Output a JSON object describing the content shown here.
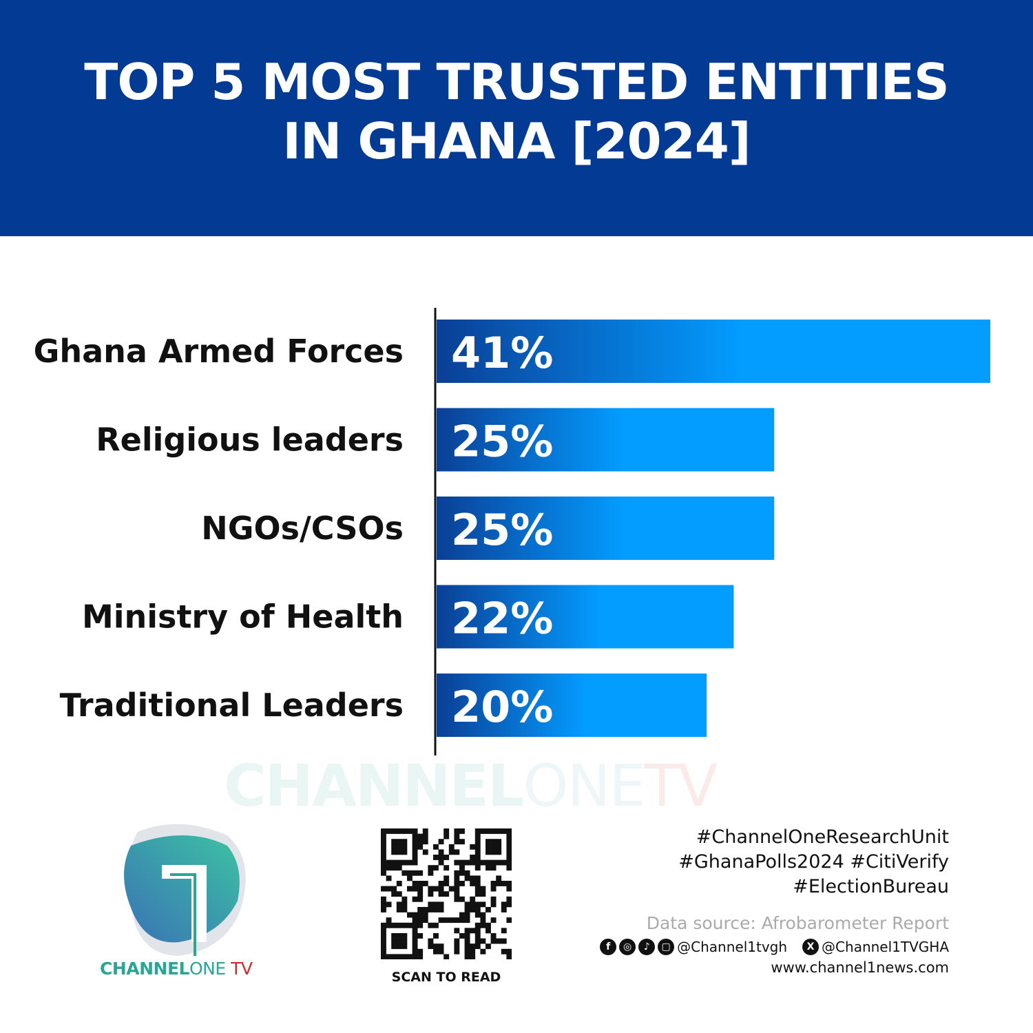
{
  "header": {
    "title_line1": "TOP 5 MOST TRUSTED ENTITIES",
    "title_line2": "IN GHANA [2024]"
  },
  "chart_data": {
    "type": "bar",
    "orientation": "horizontal",
    "title": "TOP 5 MOST TRUSTED ENTITIES IN GHANA [2024]",
    "categories": [
      "Ghana Armed Forces",
      "Religious leaders",
      "NGOs/CSOs",
      "Ministry of Health",
      "Traditional Leaders"
    ],
    "values": [
      41,
      25,
      25,
      22,
      20
    ],
    "data_labels": [
      "41%",
      "25%",
      "25%",
      "22%",
      "20%"
    ],
    "unit": "%",
    "grid": false,
    "legend": "none",
    "colors": {
      "bar_start": "#0b3f96",
      "bar_end": "#039cff"
    }
  },
  "watermark": {
    "part1": "CHANNEL",
    "part2": "ONE",
    "part3": "TV"
  },
  "logo": {
    "part1": "CHANNEL",
    "part2": "ONE",
    "part3": " TV"
  },
  "qr": {
    "label": "SCAN TO READ"
  },
  "footer": {
    "tags": [
      "#ChannelOneResearchUnit",
      "#GhanaPolls2024 #CitiVerify",
      "#ElectionBureau"
    ],
    "source": "Data source: Afrobarometer Report",
    "handle1": "@Channel1tvgh",
    "handle2": "@Channel1TVGHA",
    "website": "www.channel1news.com",
    "icons": [
      "facebook-icon",
      "instagram-icon",
      "tiktok-icon",
      "youtube-icon",
      "x-icon"
    ]
  }
}
